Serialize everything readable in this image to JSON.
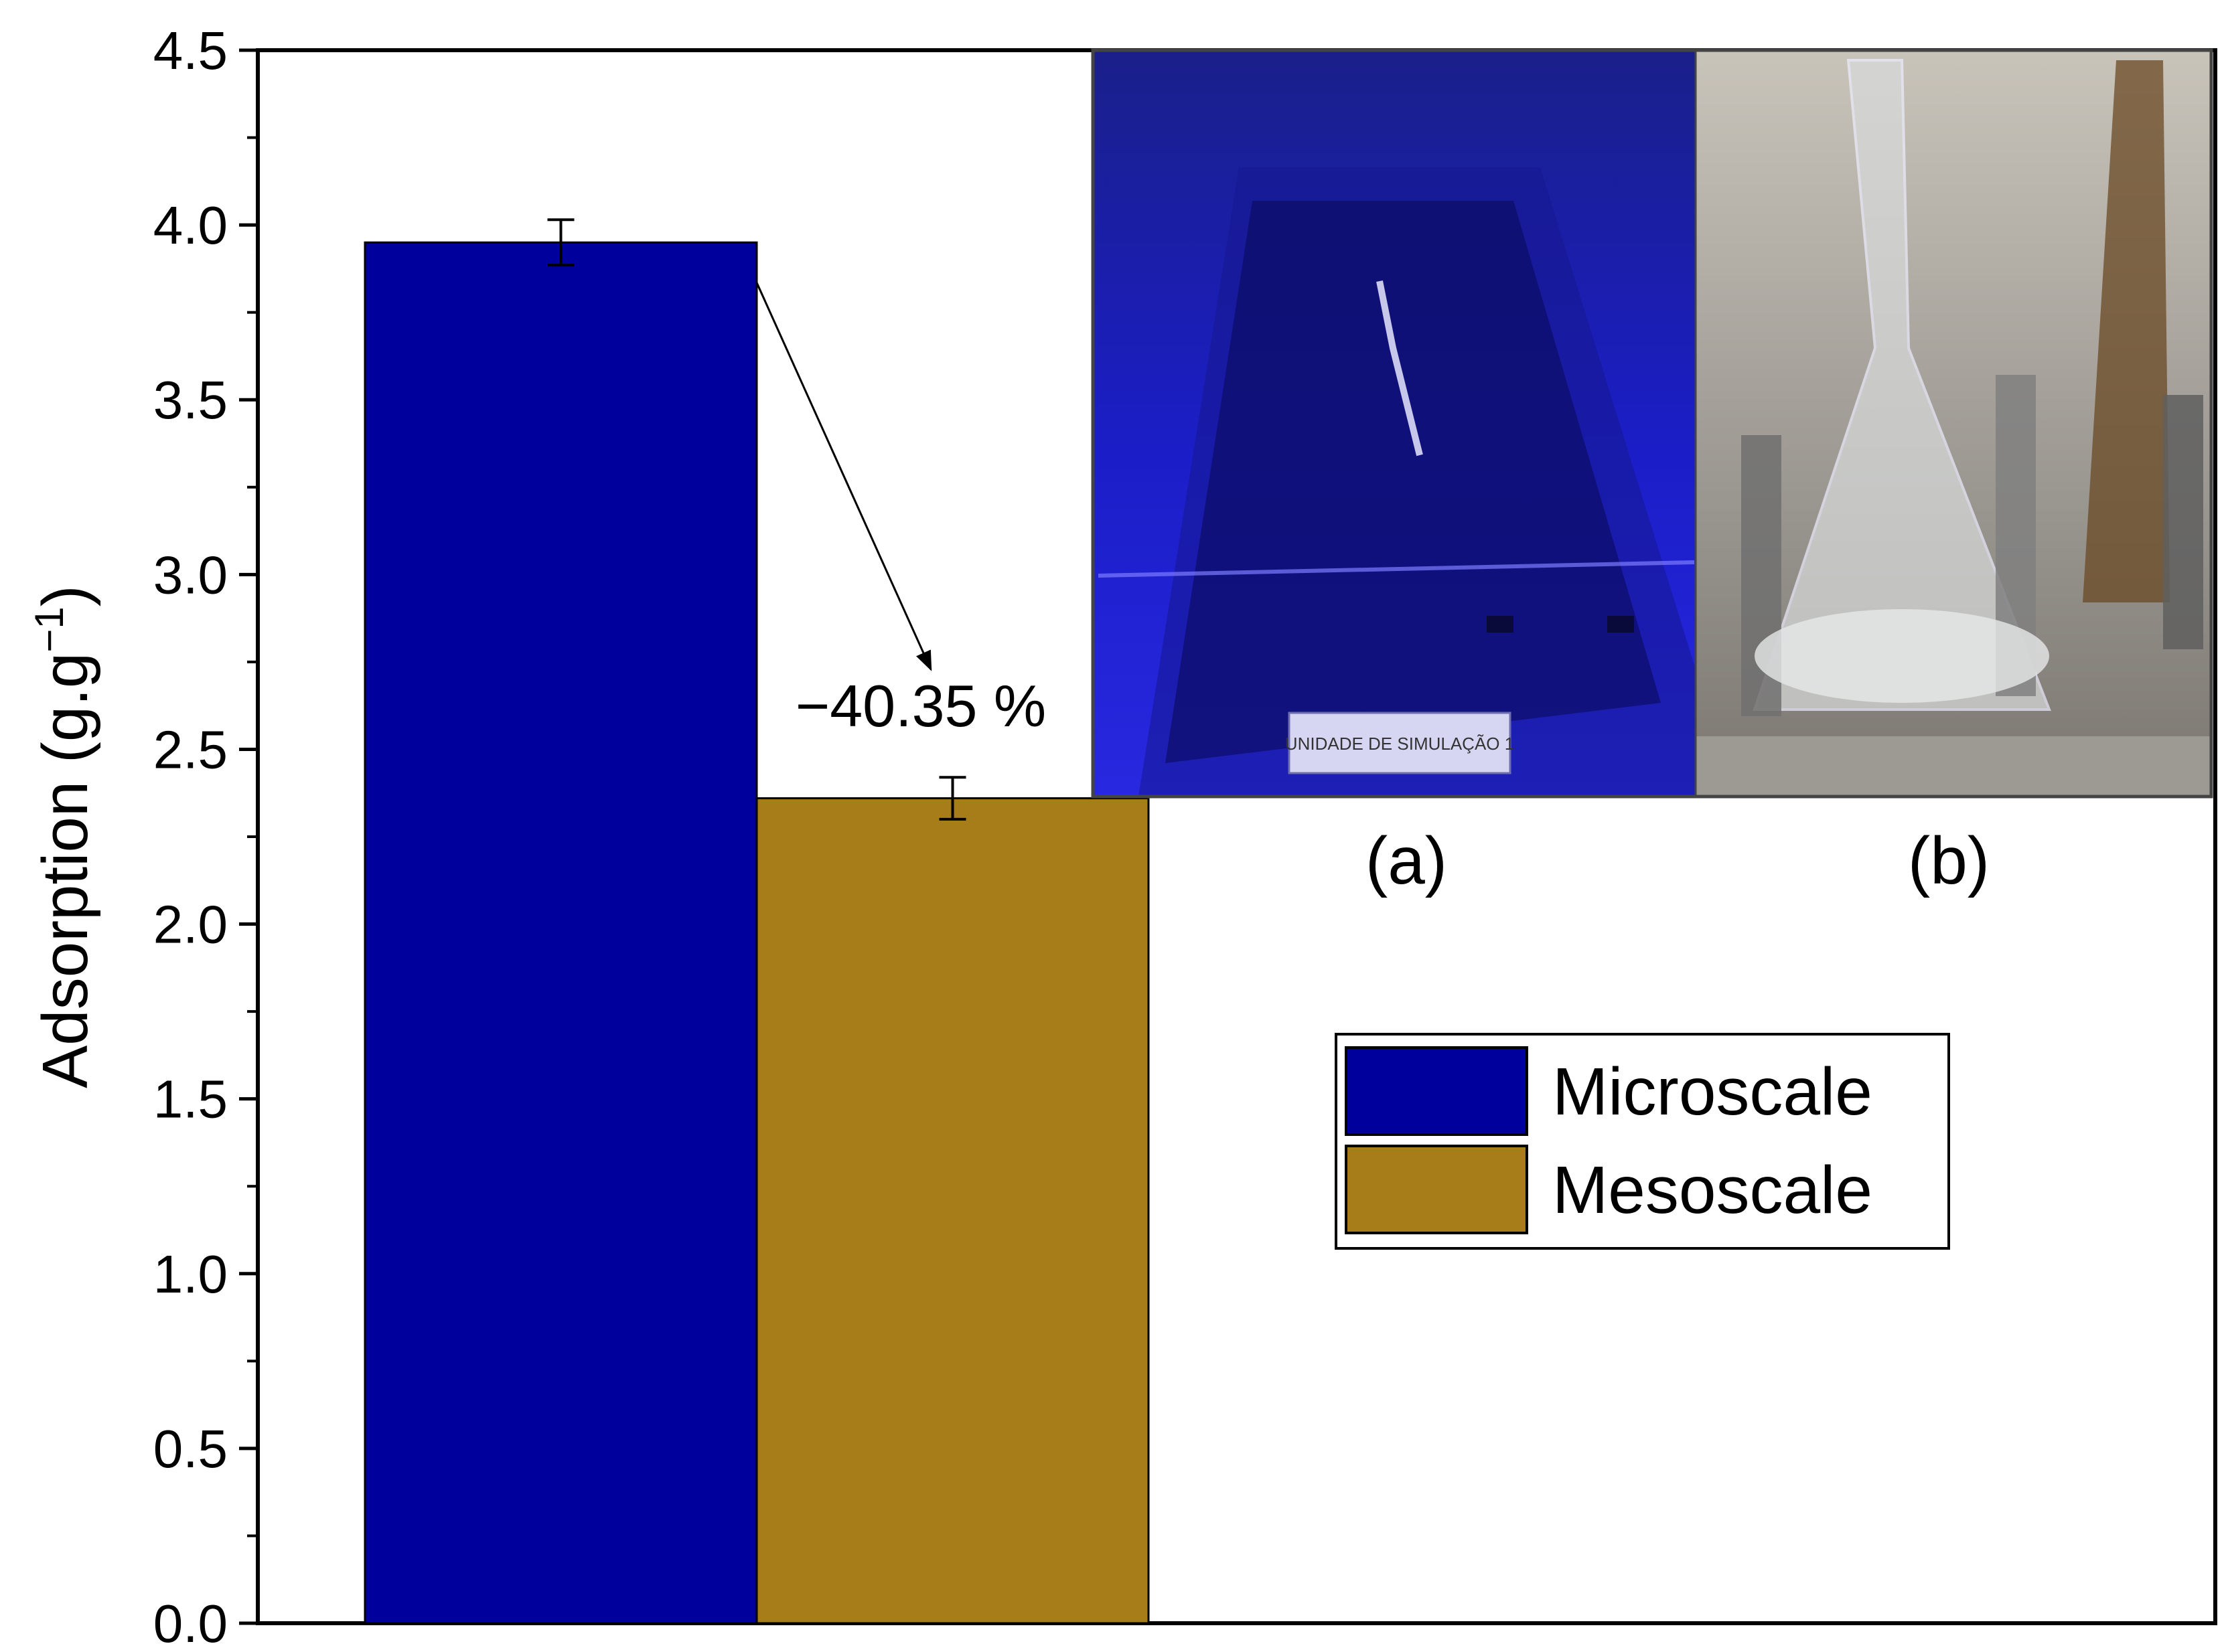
{
  "chart_data": {
    "type": "bar",
    "categories": [
      "Microscale",
      "Mesoscale"
    ],
    "values": [
      3.95,
      2.36
    ],
    "errors": [
      0.065,
      0.06
    ],
    "colors": [
      "#00009c",
      "#a77d1a"
    ],
    "ylabel": "Adsorption  (g.g",
    "ylabel_sup": "−1",
    "ylabel_close": ")",
    "ylim": [
      0,
      4.5
    ],
    "yticks": [
      "0.0",
      "0.5",
      "1.0",
      "1.5",
      "2.0",
      "2.5",
      "3.0",
      "3.5",
      "4.0",
      "4.5"
    ],
    "annotation": "−40.35 %",
    "legend": {
      "position": "middle-right",
      "items": [
        {
          "label": "Microscale",
          "color": "#00009c"
        },
        {
          "label": "Mesoscale",
          "color": "#a77d1a"
        }
      ]
    },
    "grid": false
  },
  "inset": {
    "labels": [
      "(a)",
      "(b)"
    ],
    "photo_a_plate": "UNIDADE DE SIMULAÇÃO 1"
  }
}
